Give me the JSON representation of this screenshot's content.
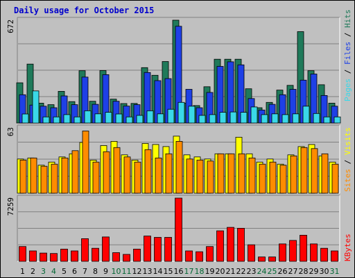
{
  "chart_data": {
    "type": "bar",
    "title": "Daily usage for October 2015",
    "categories": [
      "1",
      "2",
      "3",
      "4",
      "5",
      "6",
      "7",
      "8",
      "9",
      "10",
      "11",
      "12",
      "13",
      "14",
      "15",
      "16",
      "17",
      "18",
      "19",
      "20",
      "21",
      "22",
      "23",
      "24",
      "25",
      "26",
      "27",
      "28",
      "29",
      "30",
      "31"
    ],
    "weekend_days": [
      "3",
      "4",
      "10",
      "11",
      "17",
      "18",
      "24",
      "25",
      "31"
    ],
    "panels": [
      {
        "id": "requests",
        "ymax_label": "672",
        "ylim": [
          0,
          672
        ],
        "series": [
          {
            "name": "Hits",
            "color": "#1f7a5a",
            "values": [
              263,
              385,
              130,
              120,
              207,
              140,
              342,
              142,
              343,
              156,
              127,
              128,
              362,
              312,
              402,
              672,
              130,
              114,
              237,
              417,
              417,
              417,
              224,
              100,
              135,
              215,
              246,
              597,
              342,
              250,
              130
            ]
          },
          {
            "name": "Files",
            "color": "#1e40e6",
            "values": [
              185,
              117,
              110,
              100,
              177,
              120,
              300,
              122,
              316,
              142,
              111,
              120,
              330,
              277,
              290,
              632,
              220,
              100,
              200,
              370,
              400,
              380,
              160,
              85,
              122,
              185,
              220,
              280,
              320,
              180,
              110
            ]
          },
          {
            "name": "Pages",
            "color": "#3ad8e8",
            "values": [
              59,
              210,
              40,
              40,
              55,
              40,
              80,
              60,
              70,
              59,
              40,
              50,
              80,
              60,
              90,
              135,
              110,
              50,
              55,
              70,
              72,
              70,
              105,
              55,
              60,
              55,
              60,
              110,
              62,
              40,
              40
            ]
          }
        ]
      },
      {
        "id": "visitors",
        "ymax_label": "63",
        "ylim": [
          0,
          63
        ],
        "series": [
          {
            "name": "Visits",
            "color": "#ffff00",
            "values": [
              33,
              34,
              27,
              30,
              35,
              38,
              49,
              32,
              46,
              50,
              37,
              32,
              48,
              47,
              45,
              55,
              37,
              35,
              33,
              38,
              38,
              54,
              38,
              30,
              33,
              28,
              37,
              45,
              47,
              36,
              30
            ]
          },
          {
            "name": "Sites",
            "color": "#ff8c00",
            "values": [
              32,
              34,
              26,
              28,
              34,
              41,
              60,
              30,
              40,
              44,
              35,
              30,
              42,
              34,
              38,
              50,
              33,
              32,
              31,
              38,
              38,
              38,
              34,
              28,
              30,
              27,
              36,
              44,
              43,
              38,
              28
            ]
          }
        ]
      },
      {
        "id": "kbytes",
        "ymax_label": "7259",
        "ylim": [
          0,
          7259
        ],
        "series": [
          {
            "name": "KBytes",
            "color": "#ff0000",
            "values": [
              1700,
              1200,
              950,
              900,
              1400,
              1200,
              2600,
              1500,
              2800,
              1000,
              800,
              1400,
              2900,
              2750,
              2750,
              7259,
              1200,
              1100,
              1700,
              3500,
              3900,
              3800,
              1900,
              500,
              500,
              2000,
              2400,
              3000,
              2000,
              1500,
              1200
            ]
          }
        ]
      }
    ],
    "right_labels": {
      "pages": "Pages",
      "files": "Files",
      "hits": "Hits",
      "sep": " / ",
      "sites": "Sites",
      "visits": "Visits",
      "kbytes": "KBytes"
    },
    "colors": {
      "background": "#c0c0c0",
      "title": "#0000cc",
      "weekday_label": "#000000",
      "weekend_label": "#006633",
      "grid": "#808080"
    }
  }
}
